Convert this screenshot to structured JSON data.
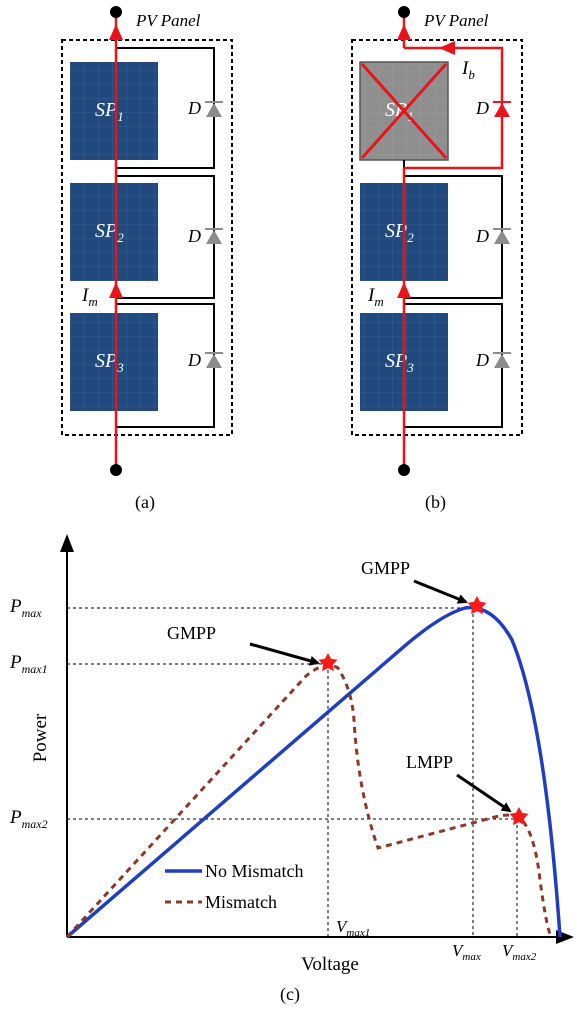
{
  "circuit_a": {
    "title": "PV Panel",
    "panels": [
      {
        "base": "SP",
        "sub": "1"
      },
      {
        "base": "SP",
        "sub": "2"
      },
      {
        "base": "SP",
        "sub": "3"
      }
    ],
    "diode_label": "D",
    "current_label": {
      "base": "I",
      "sub": "m"
    },
    "caption": "(a)"
  },
  "circuit_b": {
    "title": "PV Panel",
    "panels": [
      {
        "base": "SP",
        "sub": "1",
        "shaded": true
      },
      {
        "base": "SP",
        "sub": "2"
      },
      {
        "base": "SP",
        "sub": "3"
      }
    ],
    "diode_label": "D",
    "current_label": {
      "base": "I",
      "sub": "m"
    },
    "bypass_label": {
      "base": "I",
      "sub": "b"
    },
    "caption": "(b)"
  },
  "chart_data": {
    "type": "line",
    "xlabel": "Voltage",
    "ylabel": "Power",
    "series": [
      {
        "name": "No Mismatch",
        "style": "solid",
        "color": "#1f3fbf"
      },
      {
        "name": "Mismatch",
        "style": "dashed",
        "color": "#8b3a2a"
      }
    ],
    "y_ticks": [
      {
        "base": "P",
        "sub": "max"
      },
      {
        "base": "P",
        "sub": "max1"
      },
      {
        "base": "P",
        "sub": "max2"
      }
    ],
    "x_ticks": [
      {
        "base": "V",
        "sub": "max1"
      },
      {
        "base": "V",
        "sub": "max"
      },
      {
        "base": "V",
        "sub": "max2"
      }
    ],
    "annotations": [
      "GMPP",
      "GMPP",
      "LMPP"
    ],
    "caption": "(c)"
  },
  "colors": {
    "current": "#e8141a",
    "panel": "#20497e",
    "shaded_panel": "#8f8f8f",
    "diode": "#8c8c8c",
    "no_mismatch": "#1f3fbf",
    "mismatch": "#8b3a2a",
    "marker": "#ff1a1a"
  }
}
